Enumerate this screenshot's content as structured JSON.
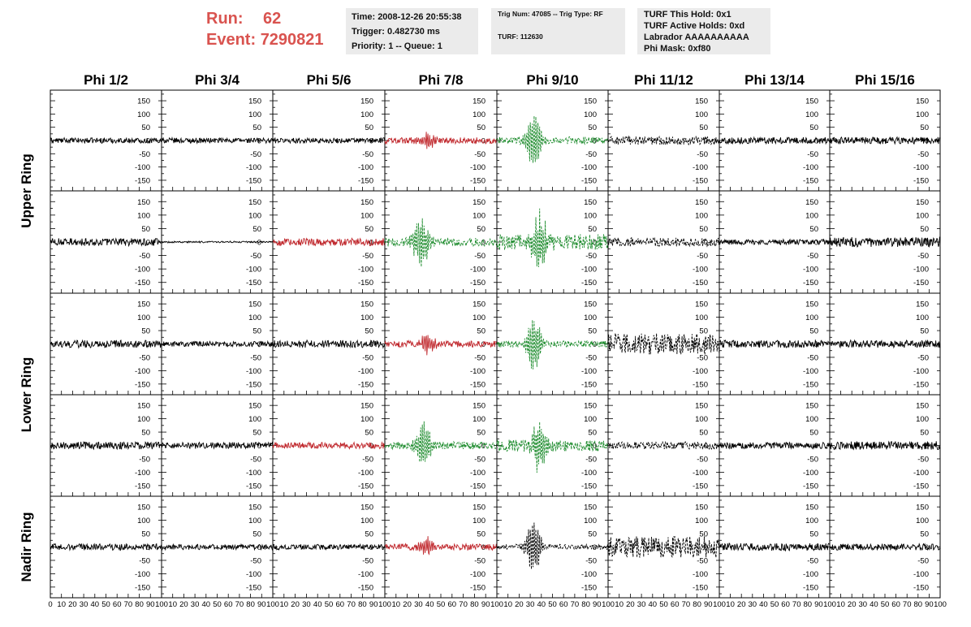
{
  "header": {
    "run_label": "Run:",
    "run_value": "62",
    "event_label": "Event:",
    "event_value": "7290821",
    "info_time": [
      "Time: 2008-12-26 20:55:38",
      "Trigger: 0.482730 ms",
      "Priority: 1 -- Queue: 1"
    ],
    "info_trig": [
      "Trig Num: 47085 -- Trig Type: RF",
      "TURF: 112630"
    ],
    "info_turf": [
      "TURF This Hold: 0x1",
      "TURF Active Holds: 0xd",
      "Labrador AAAAAAAAAA",
      "Phi Mask: 0xf80"
    ]
  },
  "chart_data": {
    "type": "line",
    "columns": [
      "Phi 1/2",
      "Phi 3/4",
      "Phi 5/6",
      "Phi 7/8",
      "Phi 9/10",
      "Phi 11/12",
      "Phi 13/14",
      "Phi 15/16"
    ],
    "row_groups": [
      "Upper Ring",
      "Lower Ring",
      "Nadir Ring"
    ],
    "xlim": [
      0,
      100
    ],
    "ylim": [
      -190,
      190
    ],
    "x_tick_labels": [
      "0",
      "10",
      "20",
      "30",
      "40",
      "50",
      "60",
      "70",
      "80",
      "90",
      "100"
    ],
    "y_tick_labels": [
      "150",
      "100",
      "50",
      "0",
      "-50",
      "-100",
      "-150"
    ],
    "colors": {
      "normal": "#000000",
      "triggered": "#c0282d",
      "green": "#1a8a2a",
      "gray_box": "#ebebeb",
      "run_text": "#d9534f"
    },
    "panels": [
      [
        {
          "color": "normal",
          "dashed": false,
          "amp": 10,
          "burst": 0,
          "center": 0
        },
        {
          "color": "normal",
          "dashed": false,
          "amp": 10,
          "burst": 0,
          "center": 0
        },
        {
          "color": "normal",
          "dashed": false,
          "amp": 10,
          "burst": 0,
          "center": 0
        },
        {
          "color": "triggered",
          "dashed": false,
          "amp": 12,
          "burst": 40,
          "center": 38
        },
        {
          "color": "green",
          "dashed": true,
          "amp": 14,
          "burst": 120,
          "center": 33
        },
        {
          "color": "normal",
          "dashed": true,
          "amp": 16,
          "burst": 0,
          "center": 0
        },
        {
          "color": "normal",
          "dashed": false,
          "amp": 12,
          "burst": 0,
          "center": 0
        },
        {
          "color": "normal",
          "dashed": false,
          "amp": 13,
          "burst": 0,
          "center": 0
        }
      ],
      [
        {
          "color": "normal",
          "dashed": false,
          "amp": 14,
          "burst": 0,
          "center": 0
        },
        {
          "color": "normal",
          "dashed": false,
          "amp": 3,
          "burst": 0,
          "center": 0
        },
        {
          "color": "triggered",
          "dashed": false,
          "amp": 14,
          "burst": 0,
          "center": 0
        },
        {
          "color": "green",
          "dashed": true,
          "amp": 16,
          "burst": 110,
          "center": 32
        },
        {
          "color": "green",
          "dashed": true,
          "amp": 30,
          "burst": 110,
          "center": 38
        },
        {
          "color": "normal",
          "dashed": true,
          "amp": 16,
          "burst": 0,
          "center": 0
        },
        {
          "color": "normal",
          "dashed": false,
          "amp": 10,
          "burst": 0,
          "center": 0
        },
        {
          "color": "normal",
          "dashed": false,
          "amp": 18,
          "burst": 0,
          "center": 0
        }
      ],
      [
        {
          "color": "normal",
          "dashed": false,
          "amp": 14,
          "burst": 0,
          "center": 0
        },
        {
          "color": "normal",
          "dashed": false,
          "amp": 10,
          "burst": 0,
          "center": 0
        },
        {
          "color": "normal",
          "dashed": false,
          "amp": 14,
          "burst": 0,
          "center": 0
        },
        {
          "color": "triggered",
          "dashed": false,
          "amp": 12,
          "burst": 40,
          "center": 38
        },
        {
          "color": "green",
          "dashed": true,
          "amp": 12,
          "burst": 120,
          "center": 33
        },
        {
          "color": "normal",
          "dashed": true,
          "amp": 40,
          "burst": 0,
          "center": 0
        },
        {
          "color": "normal",
          "dashed": false,
          "amp": 14,
          "burst": 0,
          "center": 0
        },
        {
          "color": "normal",
          "dashed": false,
          "amp": 14,
          "burst": 0,
          "center": 0
        }
      ],
      [
        {
          "color": "normal",
          "dashed": false,
          "amp": 14,
          "burst": 0,
          "center": 0
        },
        {
          "color": "normal",
          "dashed": false,
          "amp": 12,
          "burst": 0,
          "center": 0
        },
        {
          "color": "triggered",
          "dashed": false,
          "amp": 12,
          "burst": 0,
          "center": 0
        },
        {
          "color": "green",
          "dashed": true,
          "amp": 14,
          "burst": 100,
          "center": 35
        },
        {
          "color": "green",
          "dashed": true,
          "amp": 22,
          "burst": 100,
          "center": 38
        },
        {
          "color": "normal",
          "dashed": true,
          "amp": 14,
          "burst": 0,
          "center": 0
        },
        {
          "color": "normal",
          "dashed": false,
          "amp": 12,
          "burst": 0,
          "center": 0
        },
        {
          "color": "normal",
          "dashed": false,
          "amp": 16,
          "burst": 0,
          "center": 0
        }
      ],
      [
        {
          "color": "normal",
          "dashed": false,
          "amp": 12,
          "burst": 0,
          "center": 0
        },
        {
          "color": "normal",
          "dashed": false,
          "amp": 10,
          "burst": 0,
          "center": 0
        },
        {
          "color": "normal",
          "dashed": false,
          "amp": 10,
          "burst": 0,
          "center": 0
        },
        {
          "color": "triggered",
          "dashed": false,
          "amp": 12,
          "burst": 40,
          "center": 38
        },
        {
          "color": "normal",
          "dashed": true,
          "amp": 10,
          "burst": 110,
          "center": 33
        },
        {
          "color": "normal",
          "dashed": true,
          "amp": 40,
          "burst": 0,
          "center": 0
        },
        {
          "color": "normal",
          "dashed": false,
          "amp": 14,
          "burst": 0,
          "center": 0
        },
        {
          "color": "normal",
          "dashed": false,
          "amp": 12,
          "burst": 0,
          "center": 0
        }
      ]
    ]
  }
}
